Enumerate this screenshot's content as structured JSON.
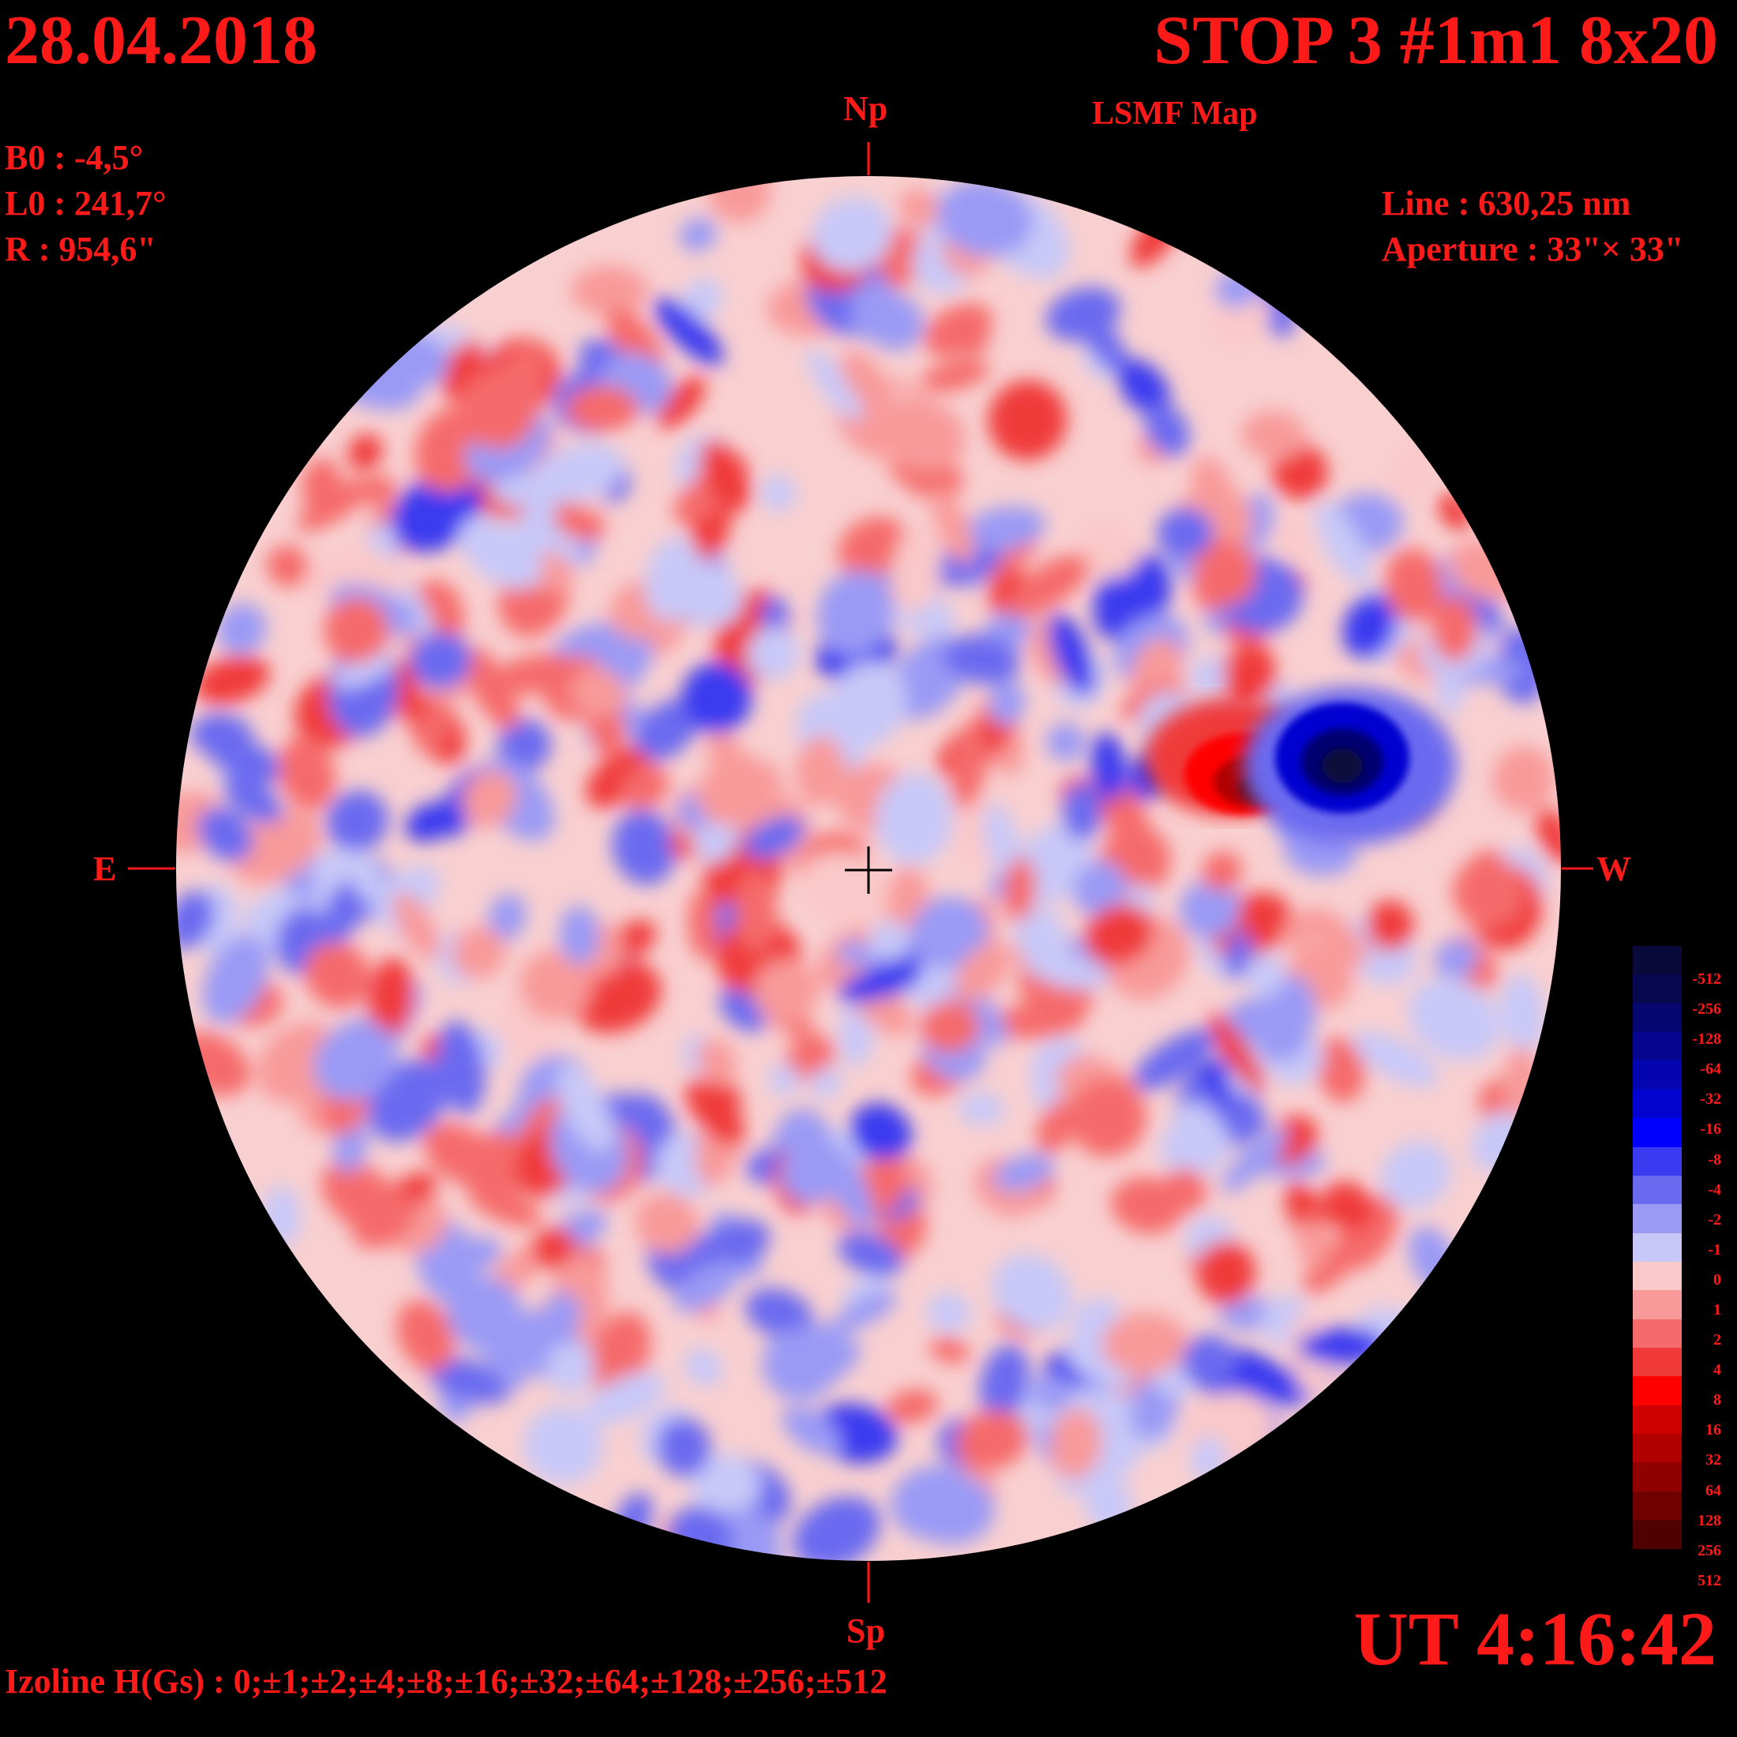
{
  "header": {
    "date": "28.04.2018",
    "title": "STOP 3 #1m1 8x20",
    "subtitle": "LSMF  Map"
  },
  "params": {
    "b0": "B0 : -4,5°",
    "l0": "L0 : 241,7°",
    "r": "R  : 954,6\""
  },
  "instrument": {
    "line": "Line :  630,25 nm",
    "aperture": "Aperture : 33\"× 33\""
  },
  "compass": {
    "north": "Np",
    "south": "Sp",
    "east": "E",
    "west": "W"
  },
  "time": "UT 4:16:42",
  "izoline": "Izoline H(Gs) : 0;±1;±2;±4;±8;±16;±32;±64;±128;±256;±512",
  "scale": {
    "labels": [
      "-512",
      "-256",
      "-128",
      "-64",
      "-32",
      "-16",
      "-8",
      "-4",
      "-2",
      "-1",
      "0",
      "1",
      "2",
      "4",
      "8",
      "16",
      "32",
      "64",
      "128",
      "256",
      "512"
    ],
    "colors": [
      "#0a0a3a",
      "#080850",
      "#060670",
      "#050590",
      "#0404b0",
      "#0303d0",
      "#0000ff",
      "#3a3af0",
      "#6a6af0",
      "#9a9af5",
      "#c8c8f8",
      "#fac8c8",
      "#f89a9a",
      "#f56a6a",
      "#f03a3a",
      "#ff0000",
      "#d00000",
      "#b00000",
      "#900000",
      "#700000",
      "#500000"
    ]
  },
  "colors": {
    "text": "#ff1a1a",
    "positive": "#f56a6a",
    "negative": "#6a6af0",
    "background": "#000000"
  }
}
